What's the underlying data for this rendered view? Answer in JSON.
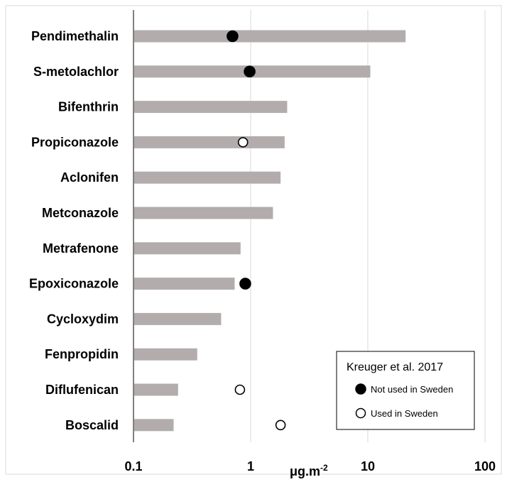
{
  "chart_data": {
    "type": "bar",
    "orientation": "horizontal",
    "xscale": "log",
    "xlim": [
      0.1,
      100
    ],
    "xticks": [
      "0.1",
      "1",
      "10",
      "100"
    ],
    "xtick_values": [
      0.1,
      1,
      10,
      100
    ],
    "xlabel_main": "μg.m",
    "xlabel_sup": "-2",
    "grid": "vertical major gridlines",
    "categories": [
      "Pendimethalin",
      "S-metolachlor",
      "Bifenthrin",
      "Propiconazole",
      "Aclonifen",
      "Metconazole",
      "Metrafenone",
      "Epoxiconazole",
      "Cycloxydim",
      "Fenpropidin",
      "Diflufenican",
      "Boscalid"
    ],
    "values": [
      21,
      10.5,
      2.05,
      1.95,
      1.8,
      1.55,
      0.82,
      0.73,
      0.56,
      0.35,
      0.24,
      0.22
    ],
    "bar_color": "#b2acac",
    "reference_points": [
      {
        "category": "Pendimethalin",
        "x": 0.7,
        "type": "filled"
      },
      {
        "category": "S-metolachlor",
        "x": 0.98,
        "type": "filled"
      },
      {
        "category": "Propiconazole",
        "x": 0.86,
        "type": "open"
      },
      {
        "category": "Epoxiconazole",
        "x": 0.9,
        "type": "filled"
      },
      {
        "category": "Diflufenican",
        "x": 0.81,
        "type": "open"
      },
      {
        "category": "Boscalid",
        "x": 1.8,
        "type": "open"
      }
    ],
    "legend": {
      "position": "bottom-right",
      "title": "Kreuger et al. 2017",
      "entries": [
        {
          "label": "Not used in Sweden",
          "marker": "filled"
        },
        {
          "label": "Used in Sweden",
          "marker": "open"
        }
      ]
    }
  }
}
